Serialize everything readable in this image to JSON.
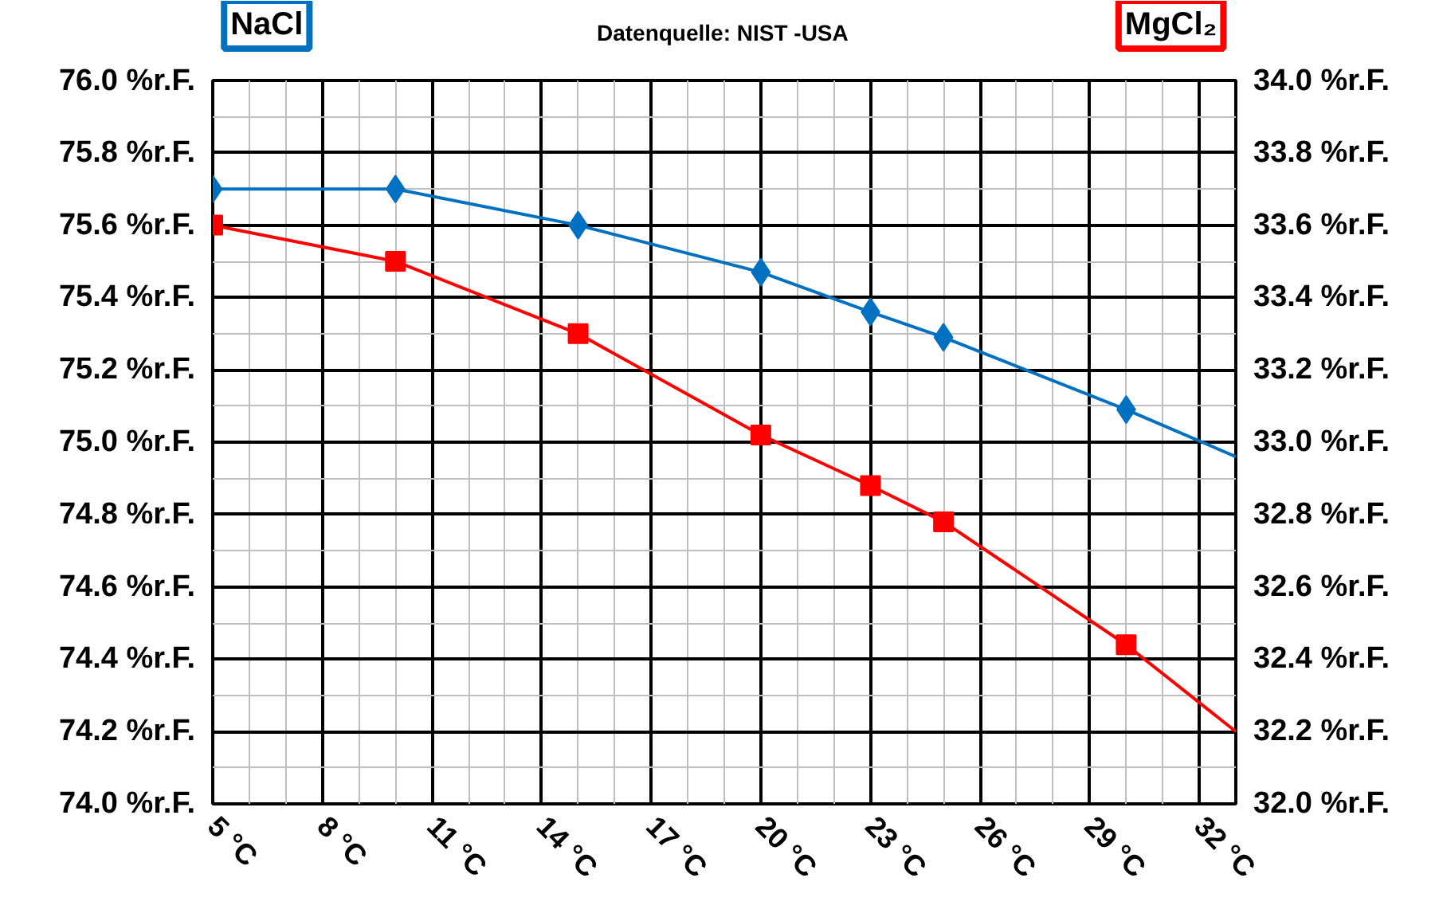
{
  "chart_data": {
    "type": "line",
    "title": "Datenquelle: NIST -USA",
    "ylabel": "NaCl",
    "y2label": "MgCl₂",
    "xlim": [
      5,
      33
    ],
    "ylim": [
      74.0,
      76.0
    ],
    "y2lim": [
      32.0,
      34.0
    ],
    "xticks": [
      {
        "value": 5,
        "label": "5 °C"
      },
      {
        "value": 8,
        "label": "8 °C"
      },
      {
        "value": 11,
        "label": "11 °C"
      },
      {
        "value": 14,
        "label": "14 °C"
      },
      {
        "value": 17,
        "label": "17 °C"
      },
      {
        "value": 20,
        "label": "20 °C"
      },
      {
        "value": 23,
        "label": "23 °C"
      },
      {
        "value": 26,
        "label": "26 °C"
      },
      {
        "value": 29,
        "label": "29 °C"
      },
      {
        "value": 32,
        "label": "32 °C"
      }
    ],
    "yticks": [
      {
        "value": 74.0,
        "label": "74.0 %r.F."
      },
      {
        "value": 74.2,
        "label": "74.2 %r.F."
      },
      {
        "value": 74.4,
        "label": "74.4 %r.F."
      },
      {
        "value": 74.6,
        "label": "74.6 %r.F."
      },
      {
        "value": 74.8,
        "label": "74.8 %r.F."
      },
      {
        "value": 75.0,
        "label": "75.0 %r.F."
      },
      {
        "value": 75.2,
        "label": "75.2 %r.F."
      },
      {
        "value": 75.4,
        "label": "75.4 %r.F."
      },
      {
        "value": 75.6,
        "label": "75.6 %r.F."
      },
      {
        "value": 75.8,
        "label": "75.8 %r.F."
      },
      {
        "value": 76.0,
        "label": "76.0 %r.F."
      }
    ],
    "y2ticks": [
      {
        "value": 32.0,
        "label": "32.0 %r.F."
      },
      {
        "value": 32.2,
        "label": "32.2 %r.F."
      },
      {
        "value": 32.4,
        "label": "32.4 %r.F."
      },
      {
        "value": 32.6,
        "label": "32.6 %r.F."
      },
      {
        "value": 32.8,
        "label": "32.8 %r.F."
      },
      {
        "value": 33.0,
        "label": "33.0 %r.F."
      },
      {
        "value": 33.2,
        "label": "33.2 %r.F."
      },
      {
        "value": 33.4,
        "label": "33.4 %r.F."
      },
      {
        "value": 33.6,
        "label": "33.6 %r.F."
      },
      {
        "value": 33.8,
        "label": "33.8 %r.F."
      },
      {
        "value": 34.0,
        "label": "34.0 %r.F."
      }
    ],
    "grid": true,
    "series": [
      {
        "marker": "none",
        "color": "#0070c0",
        "x": [
          5,
          10,
          15,
          20,
          23,
          25,
          30,
          33
        ],
        "values": [
          75.7,
          75.7,
          75.6,
          75.47,
          75.36,
          75.29,
          75.09,
          74.96
        ]
      },
      {
        "type": "scatter",
        "marker": "diamond",
        "color": "#0070c0",
        "x": [
          5,
          10,
          15,
          20,
          23,
          25,
          30
        ],
        "values": [
          75.7,
          75.7,
          75.6,
          75.47,
          75.36,
          75.29,
          75.09
        ]
      },
      {
        "marker": "none",
        "axis": "y2",
        "color": "#ff0000",
        "x": [
          5,
          10,
          15,
          20,
          23,
          25,
          30,
          33
        ],
        "values": [
          33.6,
          33.5,
          33.3,
          33.02,
          32.88,
          32.78,
          32.44,
          32.2
        ]
      },
      {
        "type": "scatter",
        "marker": "square",
        "axis": "y2",
        "color": "#ff0000",
        "x": [
          5,
          10,
          15,
          20,
          23,
          25,
          30
        ],
        "values": [
          33.6,
          33.5,
          33.3,
          33.02,
          32.88,
          32.78,
          32.44
        ]
      }
    ]
  }
}
